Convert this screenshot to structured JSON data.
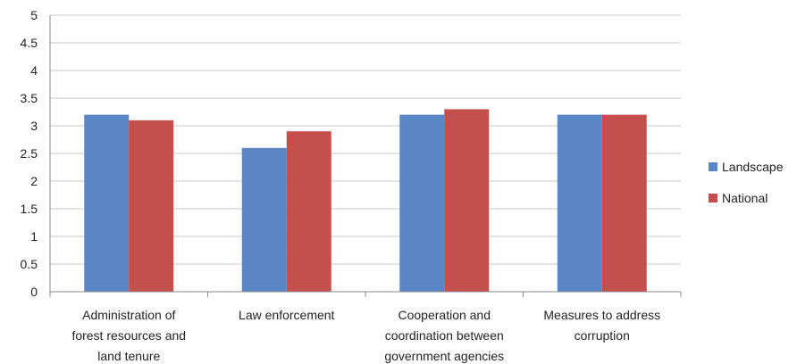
{
  "chart_data": {
    "type": "bar",
    "categories": [
      [
        "Administration of",
        "forest resources and",
        "land tenure"
      ],
      [
        "Law enforcement"
      ],
      [
        "Cooperation and",
        "coordination between",
        "government agencies"
      ],
      [
        "Measures to address",
        "corruption"
      ]
    ],
    "series": [
      {
        "name": "Landscape",
        "color": "#5b86c5",
        "values": [
          3.2,
          2.6,
          3.2,
          3.2
        ]
      },
      {
        "name": "National",
        "color": "#c4504d",
        "values": [
          3.1,
          2.9,
          3.3,
          3.2
        ]
      }
    ],
    "yticks": [
      "0",
      "0.5",
      "1",
      "1.5",
      "2",
      "2.5",
      "3",
      "3.5",
      "4",
      "4.5",
      "5"
    ],
    "ylim": [
      0,
      5
    ],
    "grid": true,
    "legend_position": "right",
    "title": "",
    "xlabel": "",
    "ylabel": ""
  }
}
